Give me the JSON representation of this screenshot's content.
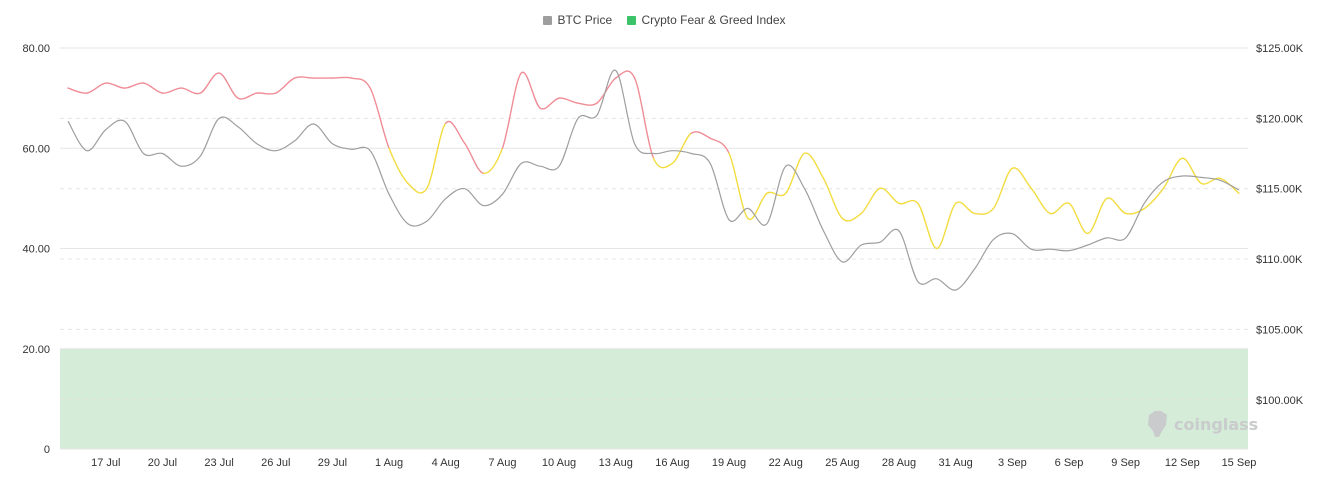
{
  "legend": {
    "btc_label": "BTC Price",
    "fg_label": "Crypto Fear & Greed Index"
  },
  "watermark": "coinglass",
  "colors": {
    "btc_line": "#9e9e9e",
    "fg_greed": "#f08c96",
    "fg_neutral": "#f2dc3e",
    "fg_zone": "#d4ecd8",
    "fg_legend": "#3cc36a",
    "grid": "#e6e6e6"
  },
  "chart_data": {
    "type": "line",
    "x_ticks": [
      "17 Jul",
      "20 Jul",
      "23 Jul",
      "26 Jul",
      "29 Jul",
      "1 Aug",
      "4 Aug",
      "7 Aug",
      "10 Aug",
      "13 Aug",
      "16 Aug",
      "19 Aug",
      "22 Aug",
      "25 Aug",
      "28 Aug",
      "31 Aug",
      "3 Sep",
      "6 Sep",
      "9 Sep",
      "12 Sep",
      "15 Sep"
    ],
    "x_dates": [
      "2025-07-15",
      "2025-07-16",
      "2025-07-17",
      "2025-07-18",
      "2025-07-19",
      "2025-07-20",
      "2025-07-21",
      "2025-07-22",
      "2025-07-23",
      "2025-07-24",
      "2025-07-25",
      "2025-07-26",
      "2025-07-27",
      "2025-07-28",
      "2025-07-29",
      "2025-07-30",
      "2025-07-31",
      "2025-08-01",
      "2025-08-02",
      "2025-08-03",
      "2025-08-04",
      "2025-08-05",
      "2025-08-06",
      "2025-08-07",
      "2025-08-08",
      "2025-08-09",
      "2025-08-10",
      "2025-08-11",
      "2025-08-12",
      "2025-08-13",
      "2025-08-14",
      "2025-08-15",
      "2025-08-16",
      "2025-08-17",
      "2025-08-18",
      "2025-08-19",
      "2025-08-20",
      "2025-08-21",
      "2025-08-22",
      "2025-08-23",
      "2025-08-24",
      "2025-08-25",
      "2025-08-26",
      "2025-08-27",
      "2025-08-28",
      "2025-08-29",
      "2025-08-30",
      "2025-08-31",
      "2025-09-01",
      "2025-09-02",
      "2025-09-03",
      "2025-09-04",
      "2025-09-05",
      "2025-09-06",
      "2025-09-07",
      "2025-09-08",
      "2025-09-09",
      "2025-09-10",
      "2025-09-11",
      "2025-09-12",
      "2025-09-13",
      "2025-09-14",
      "2025-09-15"
    ],
    "left_axis": {
      "ticks": [
        "0",
        "20.00",
        "40.00",
        "60.00",
        "80.00"
      ],
      "values": [
        0,
        20,
        40,
        60,
        80
      ],
      "range": [
        0,
        80
      ]
    },
    "right_axis": {
      "ticks": [
        "$100.00K",
        "$105.00K",
        "$110.00K",
        "$115.00K",
        "$120.00K",
        "$125.00K"
      ],
      "values": [
        100,
        105,
        110,
        115,
        120,
        125
      ],
      "range": [
        96.5,
        125
      ]
    },
    "fear_greed_zone": [
      0,
      20
    ],
    "series": [
      {
        "name": "BTC Price",
        "axis": "right",
        "values": [
          119.8,
          117.7,
          119.2,
          119.8,
          117.5,
          117.5,
          116.6,
          117.3,
          120.0,
          119.4,
          118.2,
          117.7,
          118.4,
          119.6,
          118.2,
          117.8,
          117.7,
          114.6,
          112.5,
          112.7,
          114.3,
          115.0,
          113.8,
          114.6,
          116.8,
          116.6,
          116.6,
          120.0,
          120.2,
          123.4,
          118.2,
          117.5,
          117.7,
          117.5,
          116.8,
          112.8,
          113.6,
          112.5,
          116.6,
          115.0,
          112.0,
          109.8,
          111.0,
          111.2,
          112.0,
          108.4,
          108.6,
          107.8,
          109.3,
          111.4,
          111.8,
          110.7,
          110.7,
          110.6,
          111.0,
          111.5,
          111.5,
          114.0,
          115.5,
          115.9,
          115.8,
          115.6,
          114.9
        ]
      },
      {
        "name": "Crypto Fear & Greed Index",
        "axis": "left",
        "values": [
          72,
          71,
          73,
          72,
          73,
          71,
          72,
          71,
          75,
          70,
          71,
          71,
          74,
          74,
          74,
          74,
          72,
          60,
          53,
          52,
          65,
          61,
          55,
          60,
          75,
          68,
          70,
          69,
          69,
          74,
          74,
          58,
          57,
          63,
          62,
          59,
          46,
          51,
          51,
          59,
          54,
          46,
          47,
          52,
          49,
          49,
          40,
          49,
          47,
          48,
          56,
          52,
          47,
          49,
          43,
          50,
          47,
          48,
          52,
          58,
          53,
          54,
          51
        ]
      }
    ],
    "segment_colors": [
      "greed",
      "greed",
      "greed",
      "greed",
      "greed",
      "greed",
      "greed",
      "greed",
      "greed",
      "greed",
      "greed",
      "greed",
      "greed",
      "greed",
      "greed",
      "greed",
      "greed",
      "neutral",
      "neutral",
      "neutral",
      "greed",
      "greed",
      "neutral",
      "greed",
      "greed",
      "greed",
      "greed",
      "greed",
      "greed",
      "greed",
      "greed",
      "neutral",
      "neutral",
      "greed",
      "greed",
      "neutral",
      "neutral",
      "neutral",
      "neutral",
      "neutral",
      "neutral",
      "neutral",
      "neutral",
      "neutral",
      "neutral",
      "neutral",
      "neutral",
      "neutral",
      "neutral",
      "neutral",
      "neutral",
      "neutral",
      "neutral",
      "neutral",
      "neutral",
      "neutral",
      "neutral",
      "neutral",
      "neutral",
      "neutral",
      "neutral",
      "neutral"
    ]
  }
}
